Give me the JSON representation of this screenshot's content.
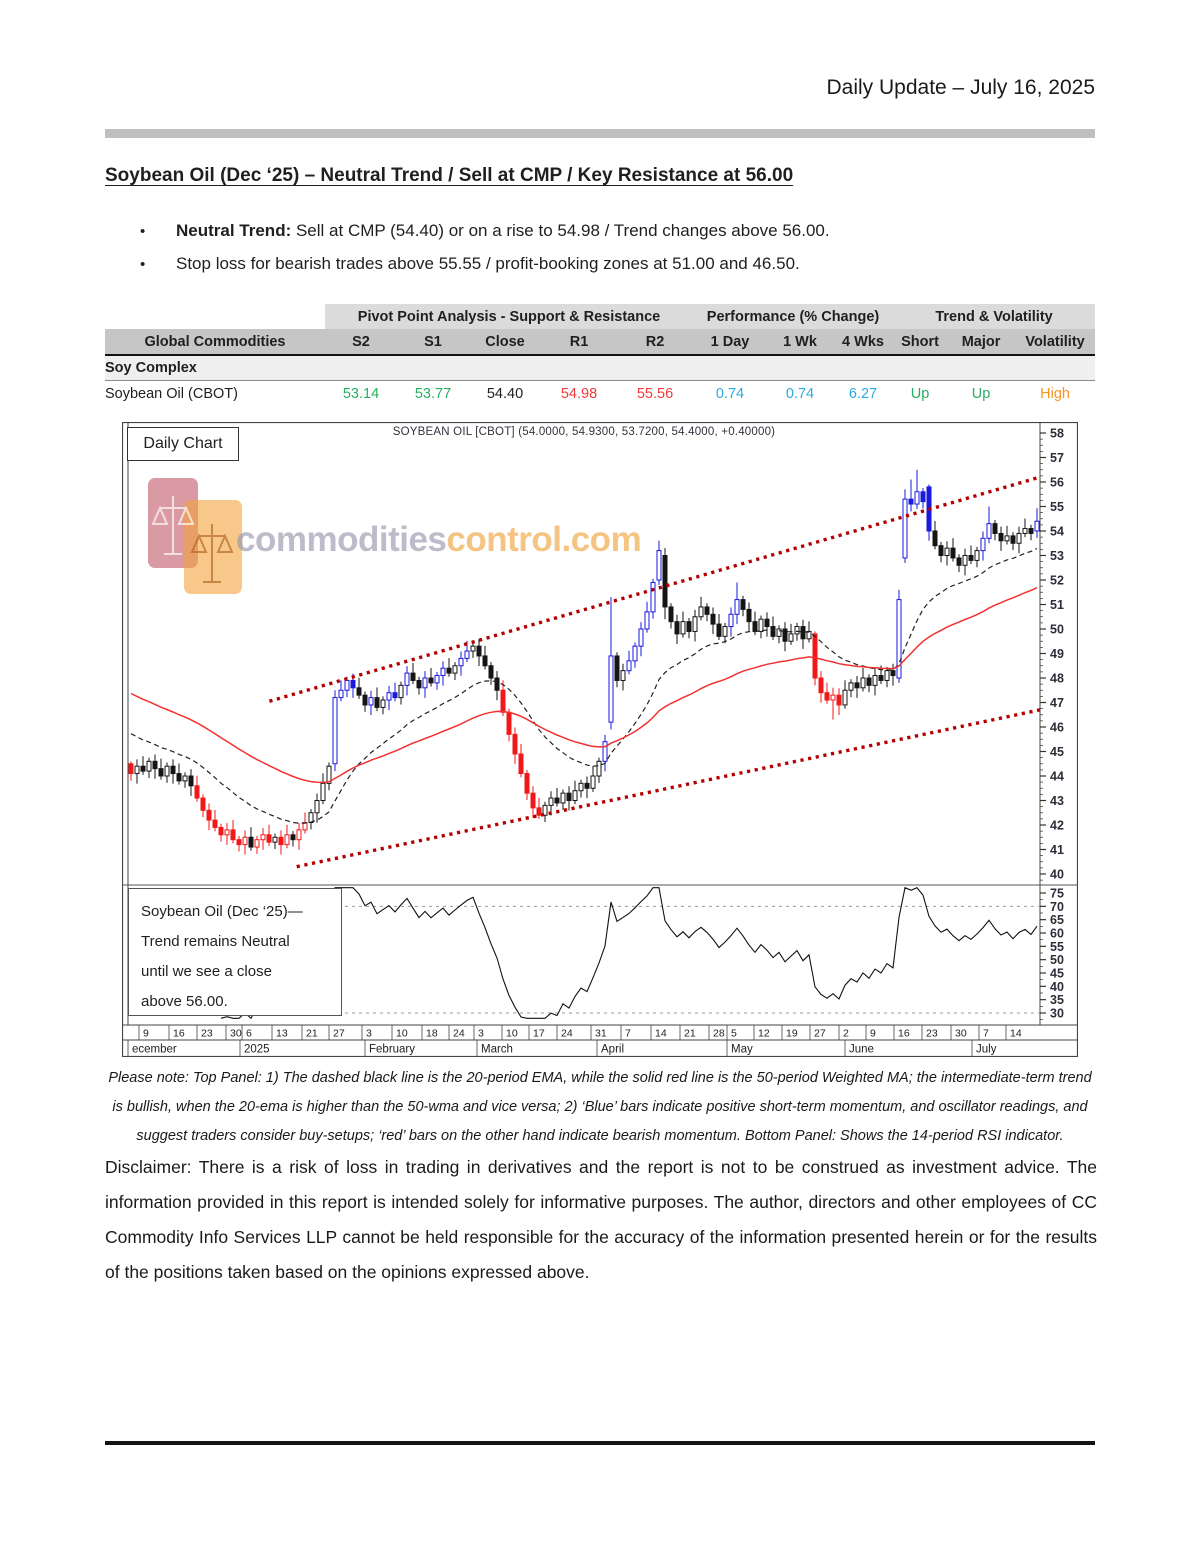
{
  "page": {
    "header_date": "Daily Update – July 16, 2025",
    "title": "Soybean Oil (Dec ‘25) – Neutral Trend / Sell at CMP / Key Resistance at 56.00",
    "bullets": [
      {
        "bold": "Neutral Trend:",
        "text": " Sell at CMP (54.40) or on a rise to 54.98 / Trend changes above 56.00."
      },
      {
        "bold": "",
        "text": "Stop loss for bearish trades above 55.55 / profit-booking zones at 51.00 and 46.50."
      }
    ],
    "note": "Please note: Top Panel: 1) The dashed black line is the 20-period EMA, while the solid red line is the 50-period Weighted MA; the intermediate-term trend is bullish, when the 20-ema is higher than the 50-wma and vice versa; 2) ‘Blue’ bars indicate positive short-term momentum, and oscillator readings, and suggest traders consider buy-setups; ‘red’ bars on the other hand indicate bearish momentum. Bottom Panel: Shows the 14-period RSI indicator.",
    "disclaimer": "Disclaimer: There is a risk of loss in trading in derivatives and the report is not to be construed as investment advice. The information provided in this report is intended solely for informative purposes. The author, directors and other employees of CC Commodity Info Services LLP cannot be held responsible for the accuracy of the information presented herein or for the results of the positions taken based on the opinions expressed above."
  },
  "table": {
    "groups": [
      {
        "label": ""
      },
      {
        "label": "Pivot Point Analysis - Support & Resistance"
      },
      {
        "label": "Performance (% Change)"
      },
      {
        "label": "Trend & Volatility"
      }
    ],
    "columns": [
      "Global Commodities",
      "S2",
      "S1",
      "Close",
      "R1",
      "R2",
      "1 Day",
      "1 Wk",
      "4 Wks",
      "Short",
      "Major",
      "Volatility"
    ],
    "section_label": "Soy Complex",
    "row": {
      "name": "Soybean Oil (CBOT)",
      "values": [
        [
          "53.14",
          "green"
        ],
        [
          "53.77",
          "green"
        ],
        [
          "54.40",
          "dark"
        ],
        [
          "54.98",
          "red"
        ],
        [
          "55.56",
          "red"
        ],
        [
          "0.74",
          "blue"
        ],
        [
          "0.74",
          "blue"
        ],
        [
          "6.27",
          "blue"
        ],
        [
          "Up",
          "green"
        ],
        [
          "Up",
          "green"
        ],
        [
          "High",
          "orange"
        ]
      ]
    }
  },
  "chart": {
    "panel_label": "Daily Chart",
    "title": "SOYBEAN OIL [CBOT] (54.0000, 54.9300, 53.7200, 54.4000, +0.40000)",
    "watermark": {
      "gray": "commodities",
      "orange": "control.com"
    },
    "annotation": "Soybean Oil (Dec ‘25)—\nTrend remains Neutral\nuntil we see a close\nabove 56.00.",
    "price_axis_labels": [
      58,
      57,
      56,
      55,
      54,
      53,
      52,
      51,
      50,
      49,
      48,
      47,
      46,
      45,
      44,
      43,
      42,
      41,
      40
    ],
    "rsi_axis_labels": [
      75,
      70,
      65,
      60,
      55,
      50,
      45,
      40,
      35,
      30
    ],
    "day_ticks": [
      [
        "9",
        23
      ],
      [
        "16",
        53
      ],
      [
        "23",
        81
      ],
      [
        "30",
        110
      ],
      [
        "6",
        126
      ],
      [
        "13",
        156
      ],
      [
        "21",
        186
      ],
      [
        "27",
        213
      ],
      [
        "3",
        246
      ],
      [
        "10",
        276
      ],
      [
        "18",
        306
      ],
      [
        "24",
        333
      ],
      [
        "3",
        358
      ],
      [
        "10",
        386
      ],
      [
        "17",
        413
      ],
      [
        "24",
        441
      ],
      [
        "31",
        475
      ],
      [
        "7",
        505
      ],
      [
        "14",
        535
      ],
      [
        "21",
        564
      ],
      [
        "28",
        593
      ],
      [
        "5",
        611
      ],
      [
        "12",
        638
      ],
      [
        "19",
        666
      ],
      [
        "27",
        694
      ],
      [
        "2",
        723
      ],
      [
        "9",
        750
      ],
      [
        "16",
        778
      ],
      [
        "23",
        806
      ],
      [
        "30",
        835
      ],
      [
        "7",
        863
      ],
      [
        "14",
        890
      ]
    ],
    "months": [
      [
        "ecember",
        6
      ],
      [
        "2025",
        118
      ],
      [
        "February",
        243
      ],
      [
        "March",
        355
      ],
      [
        "April",
        475
      ],
      [
        "May",
        605
      ],
      [
        "June",
        723
      ],
      [
        "July",
        850
      ]
    ]
  },
  "chart_data": {
    "type": "candlestick",
    "title": "SOYBEAN OIL [CBOT]",
    "last_quote": {
      "open": 54.0,
      "high": 54.93,
      "low": 53.72,
      "close": 54.4,
      "change": 0.4
    },
    "ylim": [
      39.6,
      58.3
    ],
    "rsi_ylim": [
      28,
      77
    ],
    "rsi_gridlines": [
      70,
      30
    ],
    "indicators": {
      "ema_period": 20,
      "wma_period": 50,
      "rsi_period": 14
    },
    "channel": {
      "upper": [
        0.155,
        47.05,
        1.0,
        56.2
      ],
      "lower": [
        0.185,
        40.3,
        1.0,
        46.7
      ]
    },
    "candles": [
      [
        44.1,
        "r"
      ],
      [
        44.4,
        "k"
      ],
      [
        44.2,
        "k"
      ],
      [
        44.6,
        "k"
      ],
      [
        44.3,
        "k"
      ],
      [
        44.0,
        "k"
      ],
      [
        44.4,
        "k"
      ],
      [
        44.1,
        "k"
      ],
      [
        43.8,
        "k"
      ],
      [
        44.0,
        "k"
      ],
      [
        43.6,
        "k"
      ],
      [
        43.1,
        "r"
      ],
      [
        42.6,
        "r"
      ],
      [
        42.2,
        "r"
      ],
      [
        41.9,
        "r"
      ],
      [
        41.6,
        "r"
      ],
      [
        41.8,
        "r"
      ],
      [
        41.4,
        "r"
      ],
      [
        41.2,
        "r"
      ],
      [
        41.5,
        "r"
      ],
      [
        41.1,
        "k"
      ],
      [
        41.4,
        "r"
      ],
      [
        41.6,
        "r"
      ],
      [
        41.3,
        "r"
      ],
      [
        41.5,
        "k"
      ],
      [
        41.2,
        "r"
      ],
      [
        41.6,
        "r"
      ],
      [
        41.4,
        "k"
      ],
      [
        41.8,
        "r"
      ],
      [
        42.1,
        "r"
      ],
      [
        42.5,
        "k"
      ],
      [
        43.0,
        "k"
      ],
      [
        43.7,
        "k"
      ],
      [
        44.4,
        "k"
      ],
      [
        47.2,
        "b"
      ],
      [
        47.5,
        "b"
      ],
      [
        47.9,
        "b"
      ],
      [
        47.6,
        "b"
      ],
      [
        47.3,
        "k"
      ],
      [
        46.9,
        "k"
      ],
      [
        47.2,
        "b"
      ],
      [
        46.8,
        "k"
      ],
      [
        47.1,
        "k"
      ],
      [
        47.4,
        "b"
      ],
      [
        47.2,
        "b"
      ],
      [
        47.7,
        "k"
      ],
      [
        48.2,
        "b"
      ],
      [
        47.9,
        "k"
      ],
      [
        47.6,
        "k"
      ],
      [
        48.0,
        "b"
      ],
      [
        47.8,
        "k"
      ],
      [
        48.1,
        "b"
      ],
      [
        48.4,
        "b"
      ],
      [
        48.2,
        "k"
      ],
      [
        48.5,
        "k"
      ],
      [
        48.8,
        "b"
      ],
      [
        49.1,
        "b"
      ],
      [
        49.3,
        "k"
      ],
      [
        48.9,
        "k"
      ],
      [
        48.5,
        "k"
      ],
      [
        48.0,
        "k"
      ],
      [
        47.5,
        "k"
      ],
      [
        46.6,
        "r"
      ],
      [
        45.7,
        "r"
      ],
      [
        44.9,
        "r"
      ],
      [
        44.1,
        "r"
      ],
      [
        43.3,
        "r"
      ],
      [
        42.7,
        "r"
      ],
      [
        42.4,
        "r"
      ],
      [
        42.8,
        "k"
      ],
      [
        43.1,
        "k"
      ],
      [
        42.9,
        "k"
      ],
      [
        43.3,
        "k"
      ],
      [
        43.0,
        "k"
      ],
      [
        43.4,
        "k"
      ],
      [
        43.7,
        "k"
      ],
      [
        43.5,
        "k"
      ],
      [
        44.0,
        "k"
      ],
      [
        44.6,
        "k"
      ],
      [
        45.4,
        "b"
      ],
      [
        48.9,
        "b"
      ],
      [
        47.9,
        "k"
      ],
      [
        48.3,
        "k"
      ],
      [
        48.7,
        "b"
      ],
      [
        49.3,
        "b"
      ],
      [
        50.0,
        "b"
      ],
      [
        50.7,
        "b"
      ],
      [
        51.9,
        "b"
      ],
      [
        53.2,
        "b"
      ],
      [
        50.9,
        "k"
      ],
      [
        50.3,
        "k"
      ],
      [
        49.8,
        "k"
      ],
      [
        50.3,
        "k"
      ],
      [
        49.9,
        "k"
      ],
      [
        50.5,
        "k"
      ],
      [
        50.9,
        "k"
      ],
      [
        50.6,
        "k"
      ],
      [
        50.2,
        "k"
      ],
      [
        49.7,
        "k"
      ],
      [
        50.1,
        "k"
      ],
      [
        50.6,
        "b"
      ],
      [
        51.2,
        "b"
      ],
      [
        50.8,
        "k"
      ],
      [
        50.3,
        "k"
      ],
      [
        49.9,
        "k"
      ],
      [
        50.4,
        "k"
      ],
      [
        50.1,
        "k"
      ],
      [
        49.7,
        "k"
      ],
      [
        50.0,
        "k"
      ],
      [
        49.5,
        "k"
      ],
      [
        49.8,
        "k"
      ],
      [
        50.1,
        "k"
      ],
      [
        49.6,
        "k"
      ],
      [
        49.9,
        "k"
      ],
      [
        48.0,
        "r"
      ],
      [
        47.4,
        "r"
      ],
      [
        47.1,
        "r"
      ],
      [
        47.3,
        "r"
      ],
      [
        46.9,
        "r"
      ],
      [
        47.5,
        "k"
      ],
      [
        47.8,
        "k"
      ],
      [
        47.6,
        "k"
      ],
      [
        48.0,
        "k"
      ],
      [
        47.7,
        "k"
      ],
      [
        48.1,
        "k"
      ],
      [
        47.9,
        "k"
      ],
      [
        48.3,
        "k"
      ],
      [
        48.1,
        "k"
      ],
      [
        51.2,
        "b"
      ],
      [
        55.3,
        "b"
      ],
      [
        55.1,
        "b"
      ],
      [
        55.6,
        "b"
      ],
      [
        55.2,
        "b"
      ],
      [
        54.0,
        "b"
      ],
      [
        53.4,
        "k"
      ],
      [
        53.0,
        "k"
      ],
      [
        53.3,
        "k"
      ],
      [
        52.9,
        "k"
      ],
      [
        52.6,
        "k"
      ],
      [
        53.0,
        "k"
      ],
      [
        52.8,
        "k"
      ],
      [
        53.2,
        "k"
      ],
      [
        53.7,
        "b"
      ],
      [
        54.3,
        "b"
      ],
      [
        53.9,
        "k"
      ],
      [
        53.6,
        "k"
      ],
      [
        53.8,
        "k"
      ],
      [
        53.5,
        "k"
      ],
      [
        53.9,
        "k"
      ],
      [
        54.1,
        "k"
      ],
      [
        53.9,
        "k"
      ],
      [
        54.4,
        "b"
      ]
    ],
    "overrides": {
      "0": [
        44.5,
        44.6,
        43.8
      ],
      "34": [
        44.5,
        47.5,
        44.2
      ],
      "80": [
        46.2,
        51.3,
        45.9
      ],
      "88": [
        52.0,
        53.6,
        51.8
      ],
      "89": [
        53.0,
        53.3,
        50.4
      ],
      "101": [
        50.6,
        51.9,
        50.2
      ],
      "114": [
        49.8,
        49.9,
        47.7
      ],
      "117": [
        47.1,
        47.6,
        46.3
      ],
      "128": [
        48.0,
        51.6,
        47.8
      ],
      "129": [
        52.9,
        55.7,
        52.7
      ],
      "130": [
        55.3,
        56.1,
        54.8
      ],
      "131": [
        55.1,
        56.5,
        54.9
      ],
      "133": [
        55.8,
        55.9,
        53.6
      ],
      "143": [
        53.7,
        55.0,
        53.5
      ],
      "151": [
        54.0,
        54.93,
        53.72
      ]
    }
  },
  "colors": {
    "green": "#27ae60",
    "red": "#ee3a3d",
    "blue": "#29abe2",
    "orange": "#f7941d",
    "dark": "#1f1f1f",
    "candle_blue": "#1a1adf",
    "candle_red": "#f01818",
    "candle_black": "#151515",
    "ema": "#222222",
    "wma": "#f23030",
    "channel": "#b40000",
    "rsi": "#111111"
  }
}
